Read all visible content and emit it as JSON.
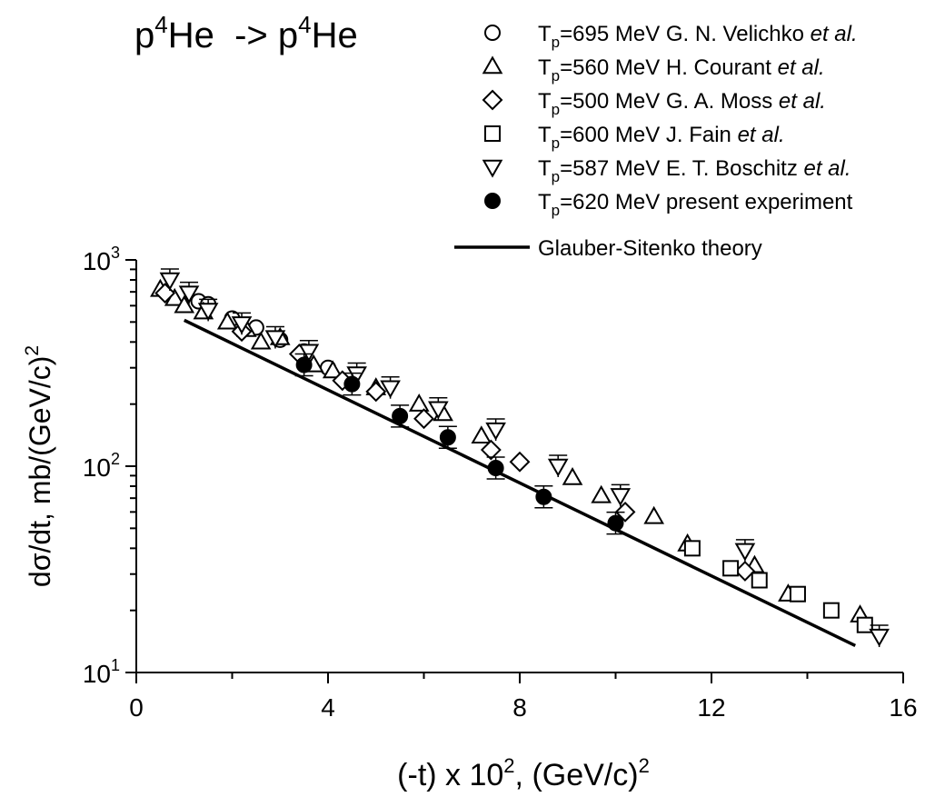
{
  "chart_data": {
    "type": "scatter",
    "title": {
      "base1": "p",
      "sup1": "4",
      "mid": "He  -> p",
      "sup2": "4",
      "end": "He"
    },
    "xlabel": {
      "main": "(-t) x 10",
      "sup": "2",
      "tail": ", (GeV/c)",
      "sup2": "2"
    },
    "ylabel": {
      "main": "dσ/dt, mb/(GeV/c)",
      "sup": "2"
    },
    "xlim": [
      0,
      16
    ],
    "ylim": [
      10,
      1000
    ],
    "yscale": "log",
    "grid": false,
    "legend_position": "top-right",
    "x_ticks": [
      0,
      4,
      8,
      12,
      16
    ],
    "x_tick_labels": [
      "0",
      "4",
      "8",
      "12",
      "16"
    ],
    "y_ticks": [
      {
        "value": 10,
        "base": "10",
        "exp": "1"
      },
      {
        "value": 100,
        "base": "10",
        "exp": "2"
      },
      {
        "value": 1000,
        "base": "10",
        "exp": "3"
      }
    ],
    "series": [
      {
        "name": {
          "pre": "T",
          "sub": "p",
          "mid": "=695 MeV G. N. Velichko ",
          "it": "et al."
        },
        "marker": "circle-open",
        "x": [
          1.3,
          1.5,
          2.0,
          2.5,
          3.0,
          3.5,
          4.0
        ],
        "y": [
          630,
          610,
          520,
          470,
          410,
          360,
          300
        ]
      },
      {
        "name": {
          "pre": "T",
          "sub": "p",
          "mid": "=560 MeV H. Courant ",
          "it": "et al."
        },
        "marker": "triangle-up-open",
        "x": [
          0.5,
          0.8,
          1.0,
          1.4,
          1.9,
          2.3,
          2.6,
          3.0,
          3.7,
          4.1,
          5.0,
          5.9,
          6.4,
          7.2,
          9.1,
          9.7,
          10.8,
          11.5,
          12.9,
          13.6,
          15.1
        ],
        "y": [
          720,
          650,
          600,
          560,
          500,
          460,
          400,
          420,
          310,
          290,
          240,
          200,
          180,
          140,
          88,
          72,
          57,
          42,
          33,
          24,
          19
        ]
      },
      {
        "name": {
          "pre": "T",
          "sub": "p",
          "mid": "=500 MeV G. A. Moss ",
          "it": "et al."
        },
        "marker": "diamond-open",
        "x": [
          0.6,
          2.2,
          3.4,
          4.3,
          5.0,
          6.0,
          7.4,
          8.0,
          10.2,
          12.7
        ],
        "y": [
          690,
          450,
          350,
          260,
          230,
          170,
          120,
          105,
          60,
          31
        ]
      },
      {
        "name": {
          "pre": "T",
          "sub": "p",
          "mid": "=600 MeV J. Fain ",
          "it": "et al."
        },
        "marker": "square-open",
        "x": [
          11.6,
          12.4,
          13.0,
          13.8,
          14.5,
          15.2
        ],
        "y": [
          40,
          32,
          28,
          24,
          20,
          17
        ]
      },
      {
        "name": {
          "pre": "T",
          "sub": "p",
          "mid": "=587 MeV E. T. Boschitz ",
          "it": "et al."
        },
        "marker": "triangle-down-open",
        "x": [
          0.7,
          1.1,
          1.5,
          2.2,
          2.9,
          3.6,
          4.6,
          5.3,
          6.3,
          7.5,
          8.8,
          10.1,
          12.7,
          15.5
        ],
        "y": [
          800,
          690,
          570,
          490,
          420,
          360,
          280,
          240,
          190,
          150,
          100,
          72,
          39,
          15
        ]
      },
      {
        "name": {
          "pre": "T",
          "sub": "p",
          "mid": "=620 MeV present experiment",
          "it": ""
        },
        "marker": "circle-filled",
        "x": [
          3.5,
          4.5,
          5.5,
          6.5,
          7.5,
          8.5,
          10.0
        ],
        "y": [
          310,
          250,
          175,
          138,
          98,
          71,
          53
        ]
      }
    ],
    "theory": {
      "name": "Glauber-Sitenko theory",
      "x": [
        1.0,
        15.0
      ],
      "y": [
        510,
        13.5
      ]
    }
  }
}
